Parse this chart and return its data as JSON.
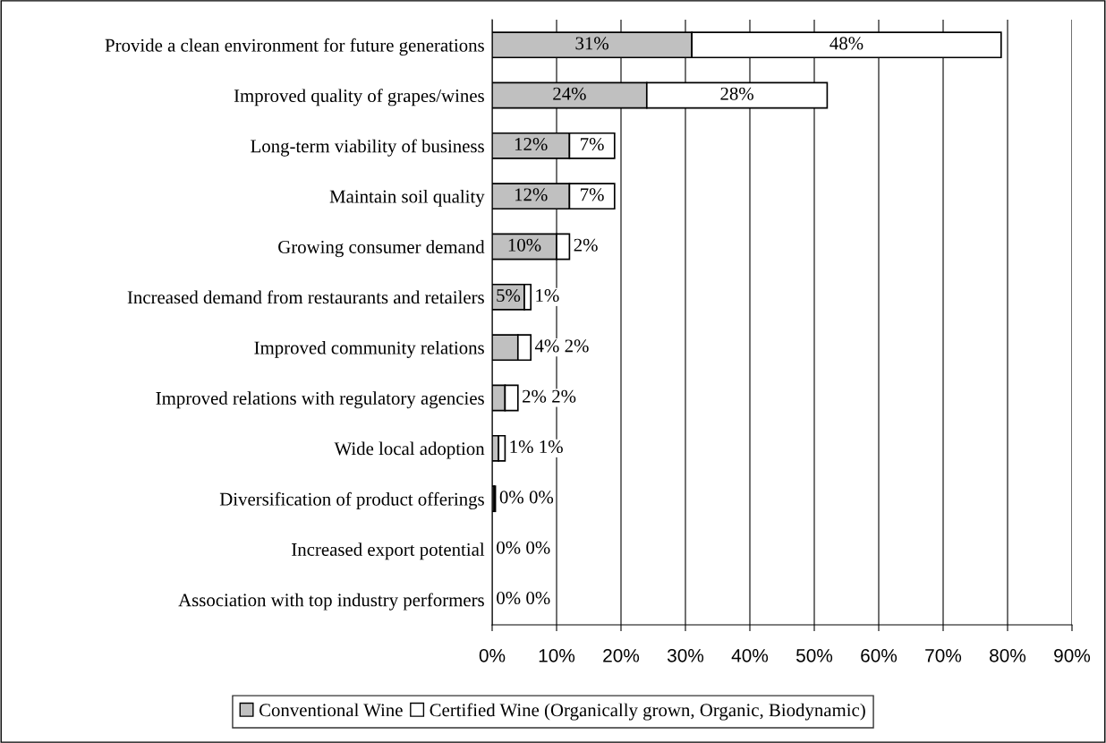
{
  "chart_data": {
    "type": "bar",
    "orientation": "horizontal",
    "stacked": true,
    "categories": [
      "Provide a clean environment for future generations",
      "Improved quality of grapes/wines",
      "Long-term viability of business",
      "Maintain soil quality",
      "Growing consumer demand",
      "Increased demand from restaurants and retailers",
      "Improved community relations",
      "Improved relations with regulatory agencies",
      "Wide local adoption",
      "Diversification of product offerings",
      "Increased export potential",
      "Association with top industry performers"
    ],
    "series": [
      {
        "name": "Conventional Wine",
        "color": "#c0c0c0",
        "values": [
          31,
          24,
          12,
          12,
          10,
          5,
          4,
          2,
          1,
          0.3,
          0,
          0
        ],
        "value_labels": [
          "31%",
          "24%",
          "12%",
          "12%",
          "10%",
          "5%",
          "4%",
          "2%",
          "1%",
          "0%",
          "0%",
          "0%"
        ]
      },
      {
        "name": "Certified Wine (Organically grown, Organic, Biodynamic)",
        "color": "#ffffff",
        "values": [
          48,
          28,
          7,
          7,
          2,
          1,
          2,
          2,
          1,
          0.2,
          0,
          0
        ],
        "value_labels": [
          "48%",
          "28%",
          "7%",
          "7%",
          "2%",
          "1%",
          "2%",
          "2%",
          "1%",
          "0%",
          "0%",
          "0%"
        ]
      }
    ],
    "xlim": [
      0,
      90
    ],
    "xticks": [
      {
        "value": 0,
        "label": "0%"
      },
      {
        "value": 10,
        "label": "10%"
      },
      {
        "value": 20,
        "label": "20%"
      },
      {
        "value": 30,
        "label": "30%"
      },
      {
        "value": 40,
        "label": "40%"
      },
      {
        "value": 50,
        "label": "50%"
      },
      {
        "value": 60,
        "label": "60%"
      },
      {
        "value": 70,
        "label": "70%"
      },
      {
        "value": 80,
        "label": "80%"
      },
      {
        "value": 90,
        "label": "90%"
      }
    ],
    "grid": "x",
    "legend": "bottom"
  }
}
